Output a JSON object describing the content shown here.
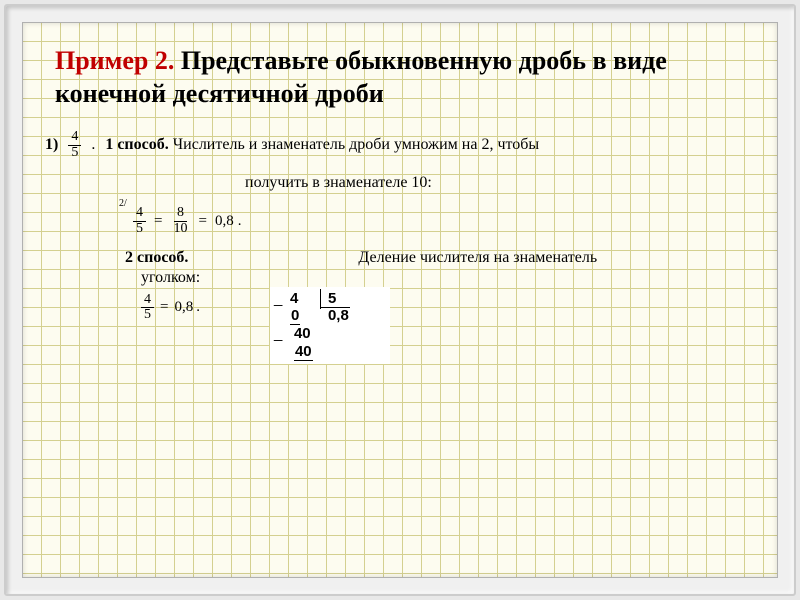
{
  "title": {
    "highlight": "Пример 2.",
    "rest": " Представьте обыкновенную дробь в виде конечной десятичной дроби",
    "highlight_color": "#c00000",
    "fontsize": 26
  },
  "problem": {
    "label": "1)",
    "fraction": {
      "num": "4",
      "den": "5"
    },
    "period": "."
  },
  "method1": {
    "label": "1 способ.",
    "text": "Числитель и знаменатель дроби умножим на 2, чтобы",
    "text2": "получить в знаменателе 10:",
    "equation": {
      "superscript": "2/",
      "f1": {
        "num": "4",
        "den": "5"
      },
      "eq1": "=",
      "f2": {
        "num": "8",
        "den": "10"
      },
      "eq2": "=",
      "result": "0,8",
      "period": "."
    }
  },
  "method2": {
    "label": "2 способ.",
    "desc": "Деление числителя на знаменатель",
    "sub": "уголком:",
    "equation": {
      "f": {
        "num": "4",
        "den": "5"
      },
      "eq": "=",
      "result": "0,8",
      "period": "."
    },
    "division": {
      "dividend": "4",
      "divisor": "5",
      "sub1": "0",
      "quotient": "0,8",
      "step_dividend": "40",
      "step_sub": "40",
      "bg": "#ffffff"
    }
  },
  "style": {
    "grid_color": "#d4d090",
    "paper_bg": "#fdfcf0",
    "frame_bg": "#f0f0f0",
    "grid_step": 19
  }
}
